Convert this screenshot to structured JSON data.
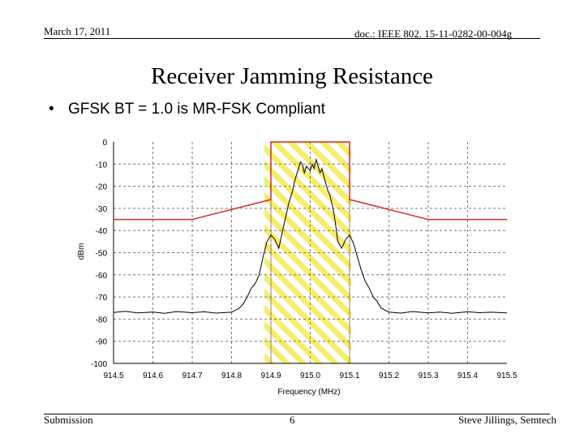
{
  "header": {
    "date": "March 17, 2011",
    "doc_id": "doc.: IEEE 802. 15-11-0282-00-004g"
  },
  "slide": {
    "title": "Receiver Jamming Resistance",
    "bullet": "GFSK BT = 1.0 is MR-FSK Compliant"
  },
  "footer": {
    "left": "Submission",
    "page": "6",
    "author": "Steve Jillings, Semtech"
  },
  "chart_data": {
    "type": "line",
    "xlabel": "Frequency (MHz)",
    "ylabel": "dBm",
    "xlim": [
      914.5,
      915.5
    ],
    "ylim": [
      -100,
      0
    ],
    "x_ticks": [
      "914.5",
      "914.6",
      "914.7",
      "914.8",
      "914.9",
      "915.0",
      "915.1",
      "915.2",
      "915.3",
      "915.4",
      "915.5"
    ],
    "y_ticks": [
      "0",
      "-10",
      "-20",
      "-30",
      "-40",
      "-50",
      "-60",
      "-70",
      "-80",
      "-90",
      "-100"
    ],
    "grid": true,
    "colors": {
      "spectrum": "#000000",
      "mask": "#d9262a",
      "band_fill": "#f3ee6e",
      "band_edge": "#e08a1e",
      "grid": "#777777"
    },
    "band": {
      "x_start": 914.9,
      "x_end": 915.1
    },
    "mask_line": [
      [
        914.5,
        -35
      ],
      [
        914.7,
        -35
      ],
      [
        914.9,
        -26
      ],
      [
        914.9,
        0
      ],
      [
        915.1,
        0
      ],
      [
        915.1,
        -26
      ],
      [
        915.3,
        -35
      ],
      [
        915.5,
        -35
      ]
    ],
    "spectrum_series": [
      [
        914.5,
        -77
      ],
      [
        914.53,
        -76.5
      ],
      [
        914.56,
        -77.2
      ],
      [
        914.6,
        -76.8
      ],
      [
        914.63,
        -77.4
      ],
      [
        914.66,
        -76.6
      ],
      [
        914.7,
        -77.1
      ],
      [
        914.73,
        -76.7
      ],
      [
        914.76,
        -77.3
      ],
      [
        914.8,
        -76.9
      ],
      [
        914.82,
        -75
      ],
      [
        914.83,
        -73
      ],
      [
        914.84,
        -70
      ],
      [
        914.85,
        -66
      ],
      [
        914.86,
        -64
      ],
      [
        914.87,
        -60
      ],
      [
        914.88,
        -52
      ],
      [
        914.89,
        -45
      ],
      [
        914.9,
        -42
      ],
      [
        914.91,
        -44
      ],
      [
        914.92,
        -48
      ],
      [
        914.93,
        -40
      ],
      [
        914.94,
        -32
      ],
      [
        914.945,
        -28
      ],
      [
        914.95,
        -25
      ],
      [
        914.955,
        -22
      ],
      [
        914.96,
        -18
      ],
      [
        914.965,
        -15
      ],
      [
        914.97,
        -12
      ],
      [
        914.975,
        -9
      ],
      [
        914.98,
        -10
      ],
      [
        914.985,
        -14
      ],
      [
        914.99,
        -11
      ],
      [
        915.0,
        -13
      ],
      [
        915.005,
        -10
      ],
      [
        915.01,
        -12
      ],
      [
        915.015,
        -8
      ],
      [
        915.02,
        -11
      ],
      [
        915.025,
        -14
      ],
      [
        915.03,
        -12
      ],
      [
        915.035,
        -16
      ],
      [
        915.04,
        -19
      ],
      [
        915.045,
        -22
      ],
      [
        915.05,
        -24
      ],
      [
        915.055,
        -28
      ],
      [
        915.06,
        -32
      ],
      [
        915.065,
        -38
      ],
      [
        915.07,
        -45
      ],
      [
        915.08,
        -48
      ],
      [
        915.09,
        -44
      ],
      [
        915.1,
        -42
      ],
      [
        915.11,
        -46
      ],
      [
        915.12,
        -52
      ],
      [
        915.13,
        -58
      ],
      [
        915.14,
        -63
      ],
      [
        915.15,
        -66
      ],
      [
        915.16,
        -70
      ],
      [
        915.17,
        -72
      ],
      [
        915.18,
        -75
      ],
      [
        915.2,
        -76.8
      ],
      [
        915.23,
        -77.3
      ],
      [
        915.26,
        -76.6
      ],
      [
        915.3,
        -77.2
      ],
      [
        915.33,
        -76.8
      ],
      [
        915.36,
        -77.4
      ],
      [
        915.4,
        -76.7
      ],
      [
        915.43,
        -77.1
      ],
      [
        915.46,
        -76.9
      ],
      [
        915.5,
        -77.2
      ]
    ]
  }
}
